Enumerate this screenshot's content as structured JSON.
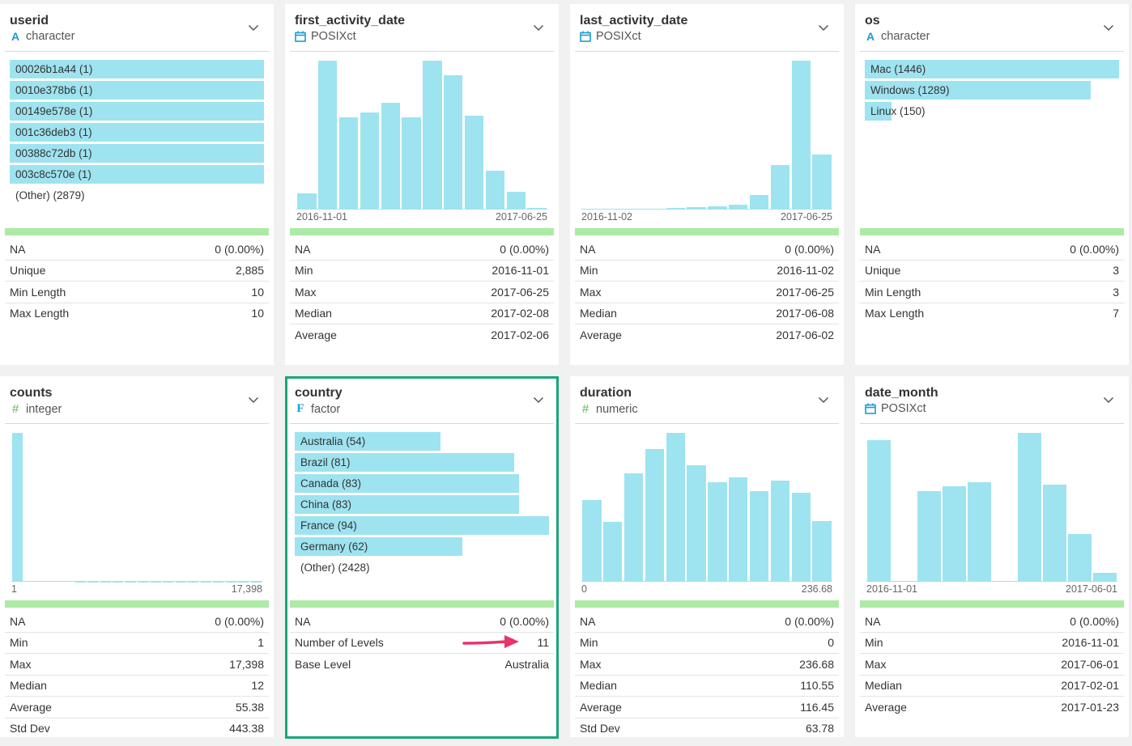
{
  "colors": {
    "bar": "#9ee3f0",
    "na_bar": "#adeaa5",
    "selected_border": "#1aa67c",
    "type_character": "#1a9bd7",
    "type_numeric": "#5cb85c",
    "arrow": "#e8336b"
  },
  "cards": [
    {
      "id": "userid",
      "name": "userid",
      "type": "character",
      "type_icon": "character-icon",
      "viz": "bars",
      "bars": [
        {
          "label": "00026b1a44 (1)",
          "frac": 1.0
        },
        {
          "label": "0010e378b6 (1)",
          "frac": 1.0
        },
        {
          "label": "00149e578e (1)",
          "frac": 1.0
        },
        {
          "label": "001c36deb3 (1)",
          "frac": 1.0
        },
        {
          "label": "00388c72db (1)",
          "frac": 1.0
        },
        {
          "label": "003c8c570e (1)",
          "frac": 1.0
        }
      ],
      "other": "(Other) (2879)",
      "stats": [
        {
          "label": "NA",
          "value": "0 (0.00%)"
        },
        {
          "label": "Unique",
          "value": "2,885"
        },
        {
          "label": "Min Length",
          "value": "10"
        },
        {
          "label": "Max Length",
          "value": "10"
        }
      ]
    },
    {
      "id": "first_activity_date",
      "name": "first_activity_date",
      "type": "POSIXct",
      "type_icon": "calendar-icon",
      "viz": "hist",
      "hist": [
        0.11,
        1.0,
        0.62,
        0.65,
        0.72,
        0.62,
        1.0,
        0.9,
        0.63,
        0.26,
        0.12,
        0.01
      ],
      "axis_min": "2016-11-01",
      "axis_max": "2017-06-25",
      "stats": [
        {
          "label": "NA",
          "value": "0 (0.00%)"
        },
        {
          "label": "Min",
          "value": "2016-11-01"
        },
        {
          "label": "Max",
          "value": "2017-06-25"
        },
        {
          "label": "Median",
          "value": "2017-02-08"
        },
        {
          "label": "Average",
          "value": "2017-02-06"
        }
      ]
    },
    {
      "id": "last_activity_date",
      "name": "last_activity_date",
      "type": "POSIXct",
      "type_icon": "calendar-icon",
      "viz": "hist",
      "hist": [
        0.005,
        0.005,
        0.005,
        0.008,
        0.01,
        0.015,
        0.02,
        0.03,
        0.1,
        0.3,
        1.0,
        0.37
      ],
      "axis_min": "2016-11-02",
      "axis_max": "2017-06-25",
      "stats": [
        {
          "label": "NA",
          "value": "0 (0.00%)"
        },
        {
          "label": "Min",
          "value": "2016-11-02"
        },
        {
          "label": "Max",
          "value": "2017-06-25"
        },
        {
          "label": "Median",
          "value": "2017-06-08"
        },
        {
          "label": "Average",
          "value": "2017-06-02"
        }
      ]
    },
    {
      "id": "os",
      "name": "os",
      "type": "character",
      "type_icon": "character-icon",
      "viz": "bars",
      "bars": [
        {
          "label": "Mac (1446)",
          "frac": 1.0
        },
        {
          "label": "Windows (1289)",
          "frac": 0.89
        },
        {
          "label": "Linux (150)",
          "frac": 0.104
        }
      ],
      "other": "",
      "stats": [
        {
          "label": "NA",
          "value": "0 (0.00%)"
        },
        {
          "label": "Unique",
          "value": "3"
        },
        {
          "label": "Min Length",
          "value": "3"
        },
        {
          "label": "Max Length",
          "value": "7"
        }
      ]
    },
    {
      "id": "counts",
      "name": "counts",
      "type": "integer",
      "type_icon": "hash-icon",
      "viz": "hist",
      "hist": [
        1.0,
        0.005,
        0.004,
        0.003,
        0.003,
        0.002,
        0.002,
        0.002,
        0.002,
        0.002,
        0.002,
        0.002,
        0.002,
        0.002,
        0.002,
        0.002,
        0.002,
        0.002,
        0.002,
        0.002
      ],
      "axis_min": "1",
      "axis_max": "17,398",
      "stats": [
        {
          "label": "NA",
          "value": "0 (0.00%)"
        },
        {
          "label": "Min",
          "value": "1"
        },
        {
          "label": "Max",
          "value": "17,398"
        },
        {
          "label": "Median",
          "value": "12"
        },
        {
          "label": "Average",
          "value": "55.38"
        },
        {
          "label": "Std Dev",
          "value": "443.38"
        }
      ]
    },
    {
      "id": "country",
      "name": "country",
      "type": "factor",
      "type_icon": "factor-icon",
      "viz": "bars",
      "selected": true,
      "bars": [
        {
          "label": "Australia (54)",
          "frac": 0.574
        },
        {
          "label": "Brazil (81)",
          "frac": 0.862
        },
        {
          "label": "Canada (83)",
          "frac": 0.883
        },
        {
          "label": "China (83)",
          "frac": 0.883
        },
        {
          "label": "France (94)",
          "frac": 1.0
        },
        {
          "label": "Germany (62)",
          "frac": 0.66
        }
      ],
      "other": "(Other) (2428)",
      "stats": [
        {
          "label": "NA",
          "value": "0 (0.00%)"
        },
        {
          "label": "Number of Levels",
          "value": "11"
        },
        {
          "label": "Base Level",
          "value": "Australia"
        }
      ]
    },
    {
      "id": "duration",
      "name": "duration",
      "type": "numeric",
      "type_icon": "hash-icon",
      "viz": "hist",
      "hist": [
        0.55,
        0.4,
        0.73,
        0.89,
        1.0,
        0.78,
        0.67,
        0.7,
        0.61,
        0.68,
        0.6,
        0.41
      ],
      "axis_min": "0",
      "axis_max": "236.68",
      "stats": [
        {
          "label": "NA",
          "value": "0 (0.00%)"
        },
        {
          "label": "Min",
          "value": "0"
        },
        {
          "label": "Max",
          "value": "236.68"
        },
        {
          "label": "Median",
          "value": "110.55"
        },
        {
          "label": "Average",
          "value": "116.45"
        },
        {
          "label": "Std Dev",
          "value": "63.78"
        }
      ]
    },
    {
      "id": "date_month",
      "name": "date_month",
      "type": "POSIXct",
      "type_icon": "calendar-icon",
      "viz": "hist",
      "hist": [
        0.95,
        0.0,
        0.61,
        0.64,
        0.67,
        0.0,
        1.0,
        0.65,
        0.32,
        0.06
      ],
      "axis_min": "2016-11-01",
      "axis_max": "2017-06-01",
      "stats": [
        {
          "label": "NA",
          "value": "0 (0.00%)"
        },
        {
          "label": "Min",
          "value": "2016-11-01"
        },
        {
          "label": "Max",
          "value": "2017-06-01"
        },
        {
          "label": "Median",
          "value": "2017-02-01"
        },
        {
          "label": "Average",
          "value": "2017-01-23"
        }
      ]
    }
  ]
}
